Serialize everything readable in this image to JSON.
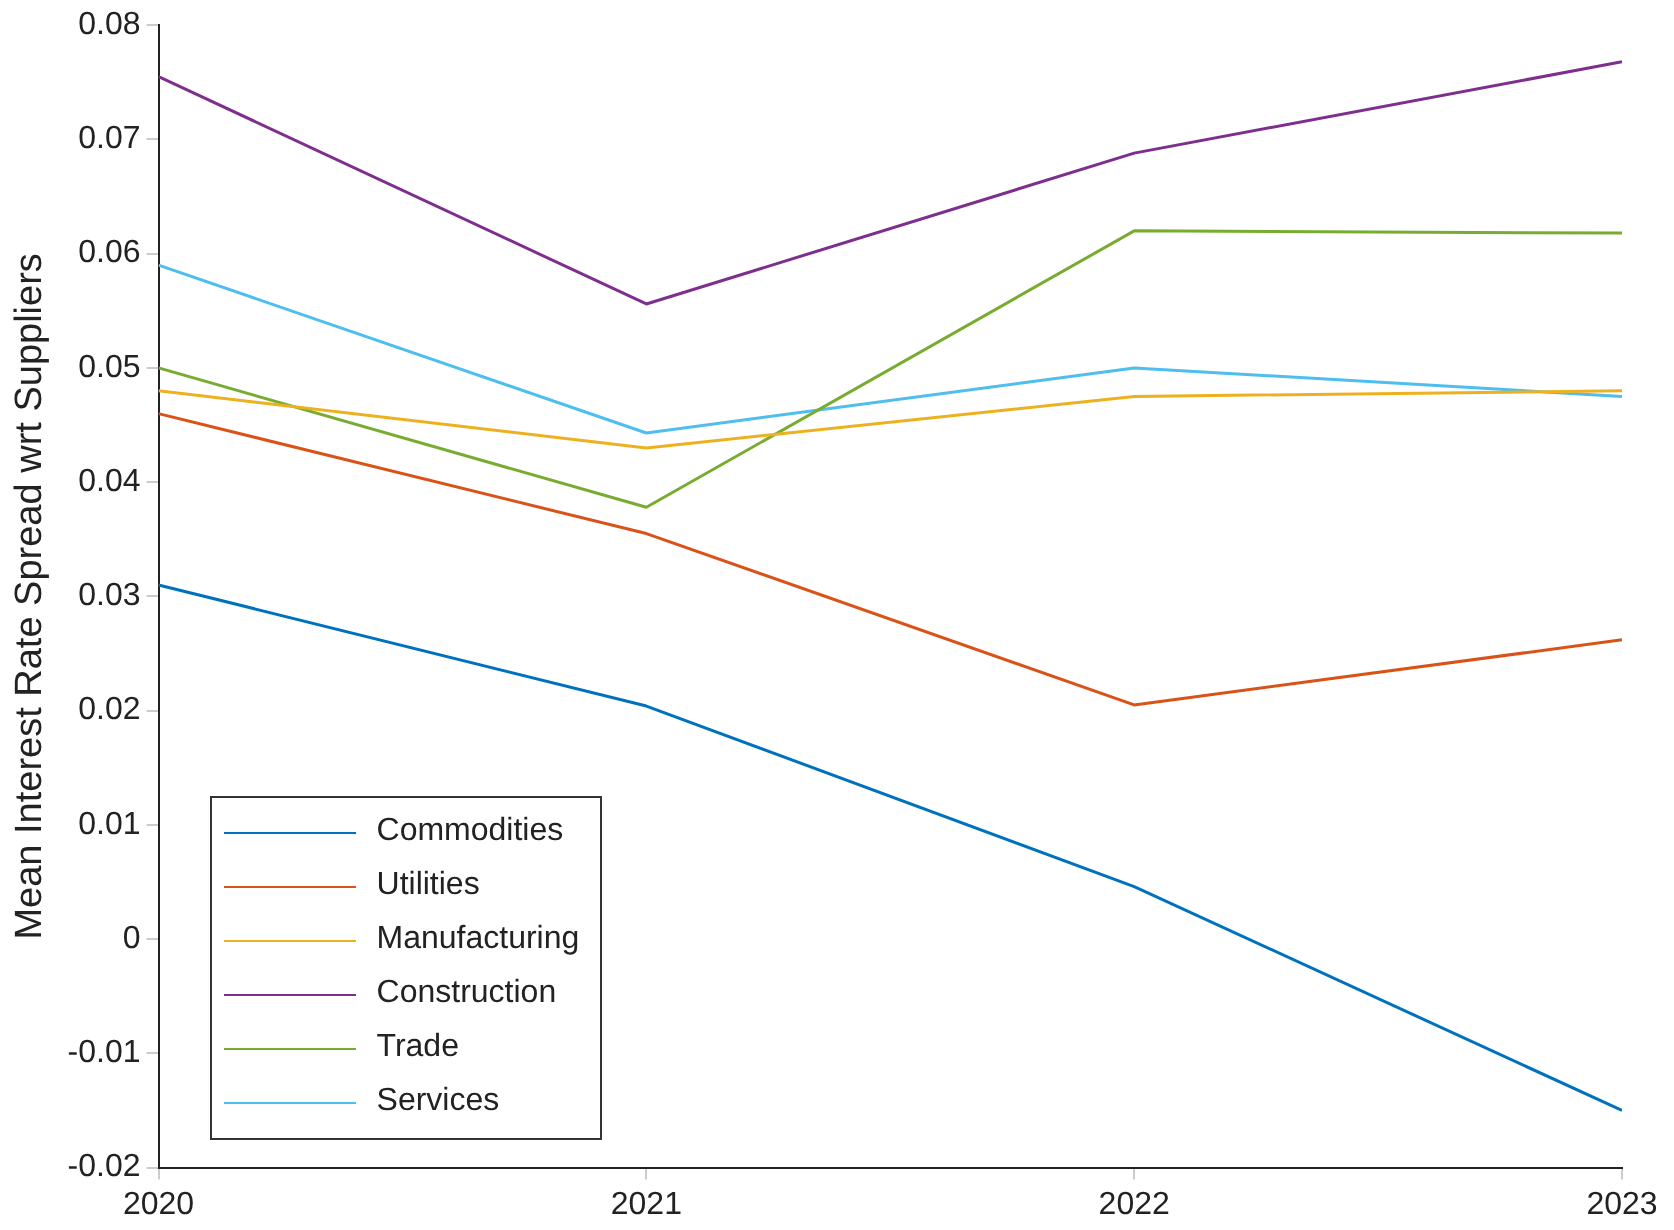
{
  "chart_data": {
    "type": "line",
    "ylabel": "Mean Interest Rate Spread wrt Suppliers",
    "x": [
      2020,
      2021,
      2022,
      2023
    ],
    "xlim": [
      2020,
      2023
    ],
    "xticks": [
      2020,
      2021,
      2022,
      2023
    ],
    "ylim": [
      -0.02,
      0.08
    ],
    "yticks": [
      -0.02,
      -0.01,
      0,
      0.01,
      0.02,
      0.03,
      0.04,
      0.05,
      0.06,
      0.07,
      0.08
    ],
    "grid": false,
    "legend": "bottom left",
    "series": [
      {
        "name": "Commodities",
        "color": "#0072bd",
        "values": [
          0.031,
          0.0204,
          0.0046,
          -0.015
        ]
      },
      {
        "name": "Utilities",
        "color": "#d95319",
        "values": [
          0.046,
          0.0355,
          0.0205,
          0.0262
        ]
      },
      {
        "name": "Manufacturing",
        "color": "#edb120",
        "values": [
          0.048,
          0.043,
          0.0475,
          0.048
        ]
      },
      {
        "name": "Construction",
        "color": "#7e2f8e",
        "values": [
          0.0755,
          0.0556,
          0.0688,
          0.0768
        ]
      },
      {
        "name": "Trade",
        "color": "#77ac30",
        "values": [
          0.05,
          0.0378,
          0.062,
          0.0618
        ]
      },
      {
        "name": "Services",
        "color": "#4dbeee",
        "values": [
          0.059,
          0.0443,
          0.05,
          0.0475
        ]
      }
    ]
  }
}
